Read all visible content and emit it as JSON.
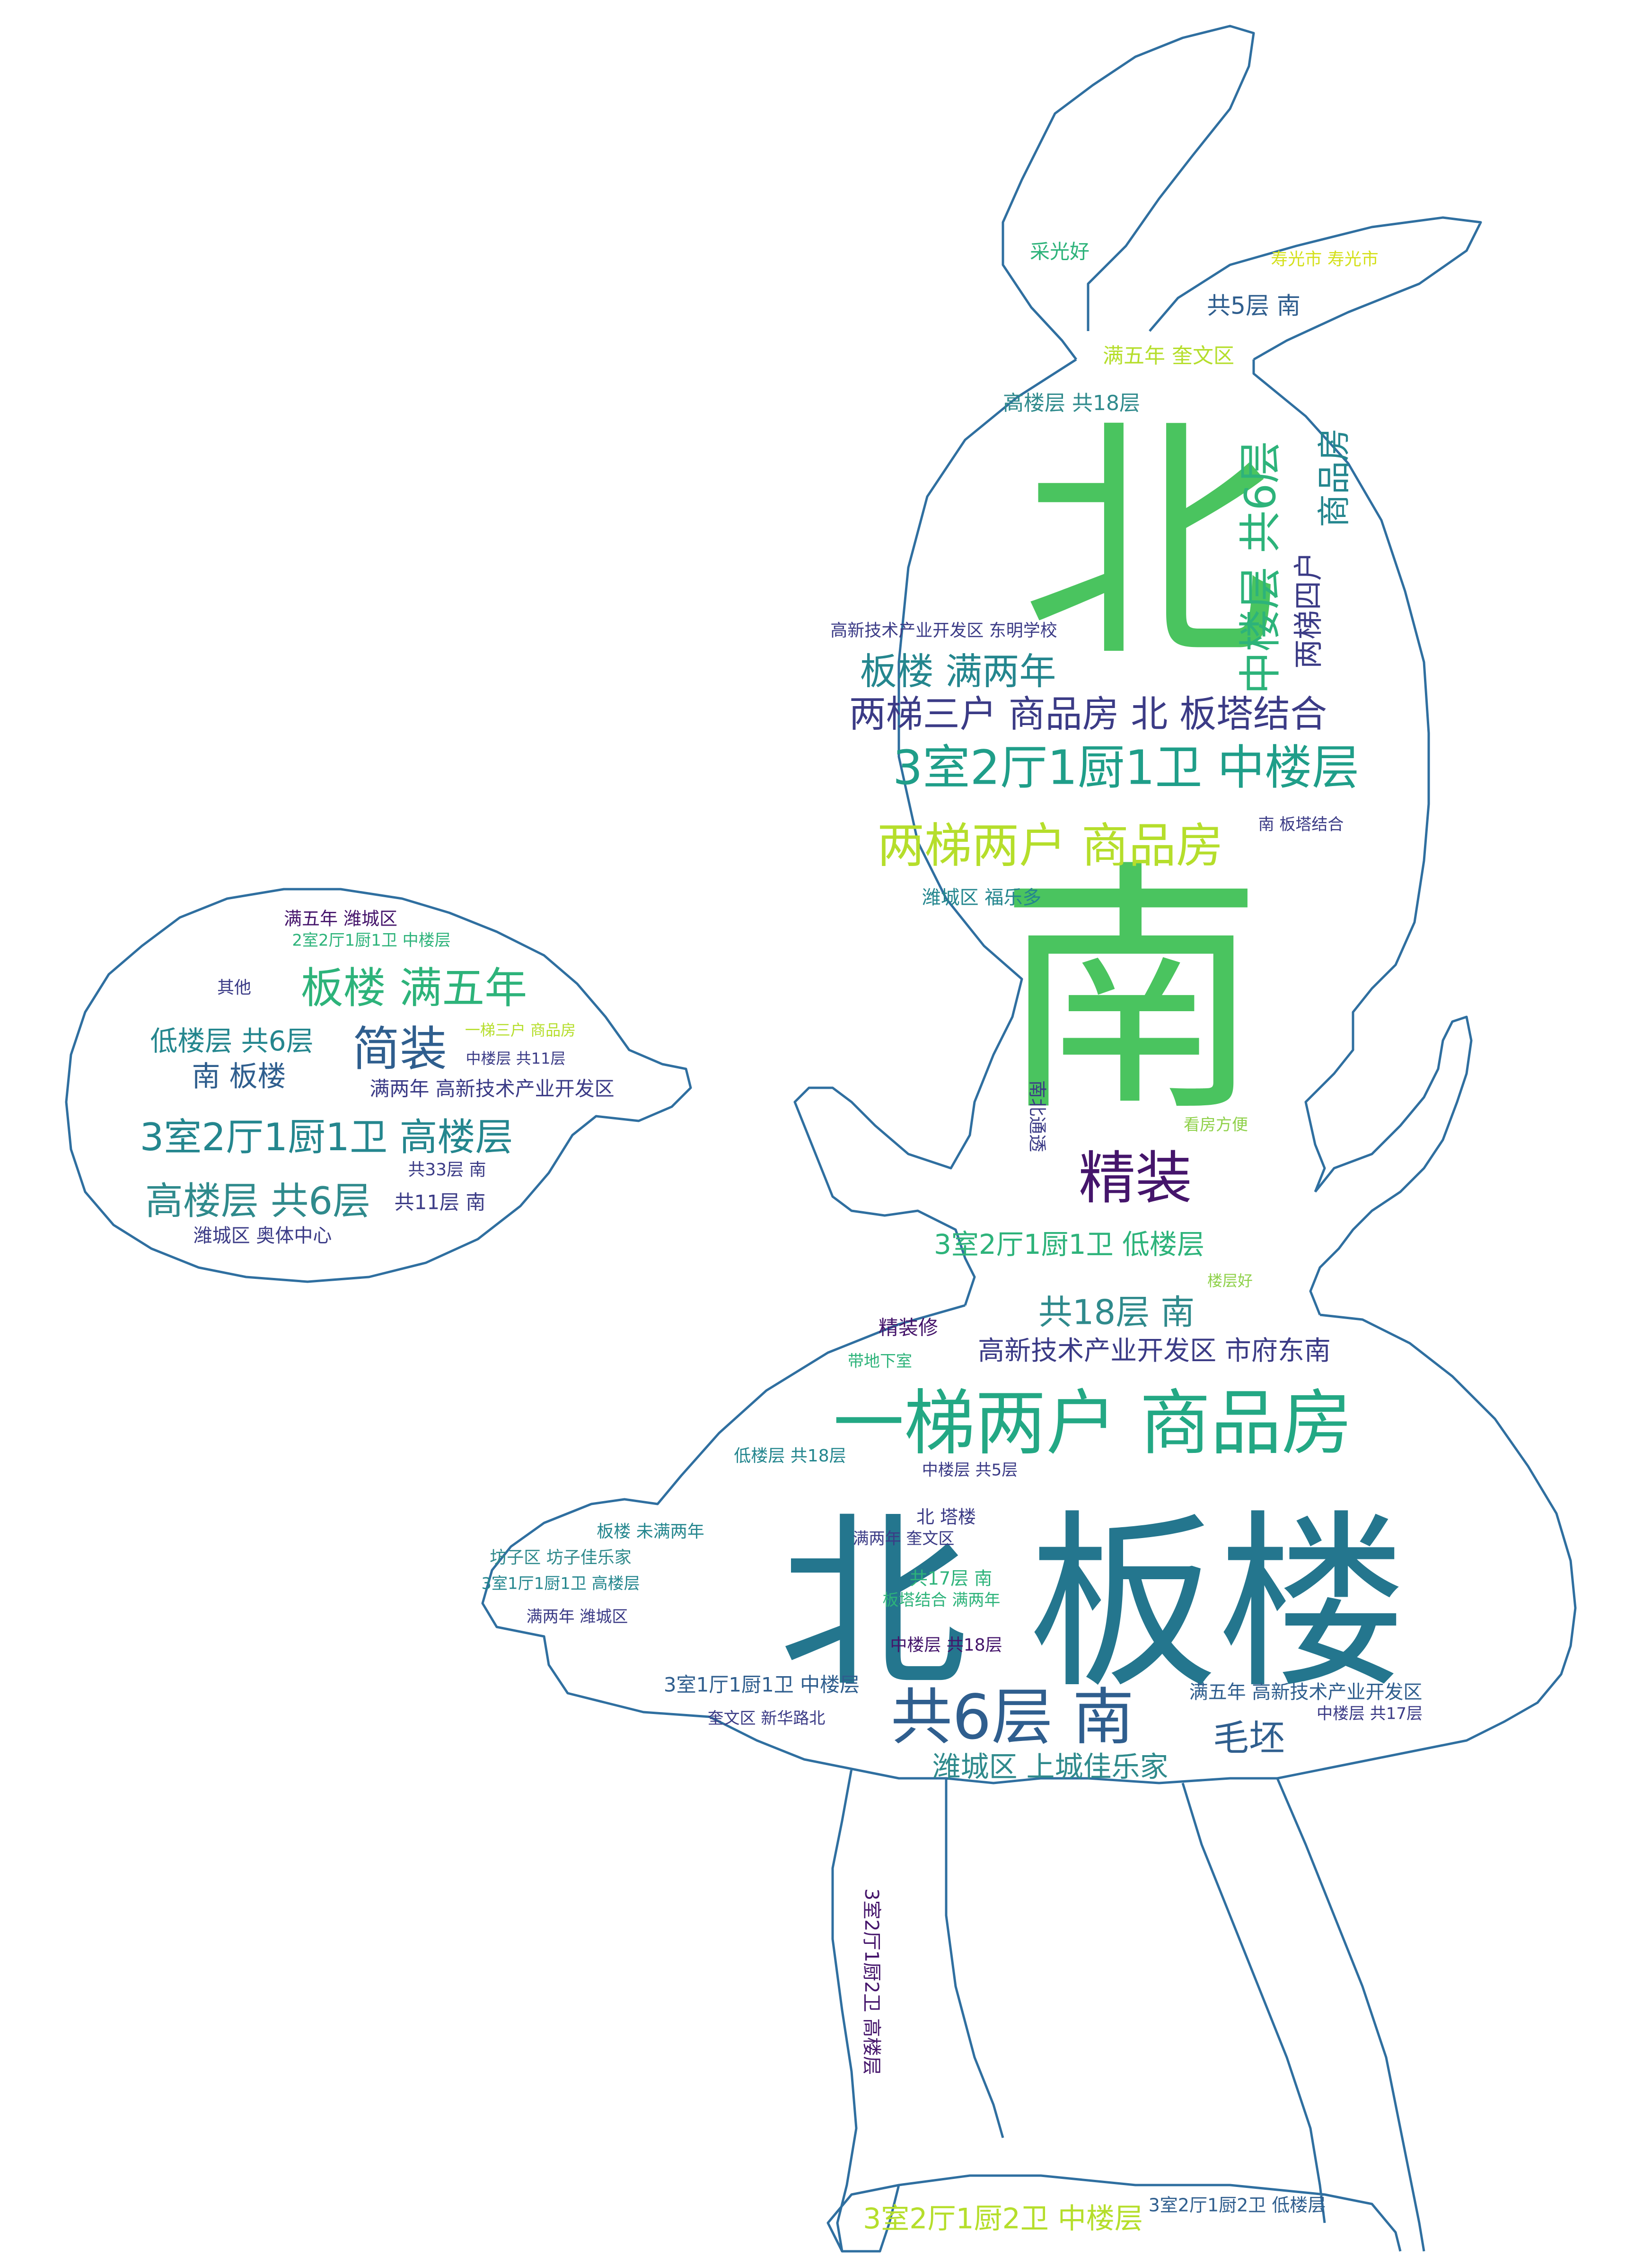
{
  "image": {
    "outline_color": "#2f6fa0",
    "background": "#ffffff",
    "palette": {
      "purple": "#45156b",
      "indigo": "#3b3b86",
      "blue": "#2f5e8e",
      "teal": "#24868e",
      "green": "#2db37a",
      "lime": "#4fc35d",
      "lightgreen": "#8fd14a",
      "yellow": "#d4e01b"
    }
  },
  "words": [
    {
      "text": "北",
      "color": "#4ac45f",
      "rot": 0
    },
    {
      "text": "南",
      "color": "#4ac45f",
      "rot": 0
    },
    {
      "text": "北 板楼",
      "color": "#24768e",
      "rot": 0
    },
    {
      "text": "一梯两户 商品房",
      "color": "#23a884",
      "rot": 0
    },
    {
      "text": "共6层 南",
      "color": "#2f5e8e",
      "rot": 0
    },
    {
      "text": "3室2厅1厨1卫 中楼层",
      "color": "#1f9e89",
      "rot": 0
    },
    {
      "text": "两梯两户 商品房",
      "color": "#b5de2b",
      "rot": 0
    },
    {
      "text": "两梯三户 商品房 北 板塔结合",
      "color": "#3b3b86",
      "rot": 0
    },
    {
      "text": "板楼 满两年",
      "color": "#24868e",
      "rot": 0
    },
    {
      "text": "精装",
      "color": "#45156b",
      "rot": 0
    },
    {
      "text": "中楼层 共6层",
      "color": "#2db37a",
      "rot": 270
    },
    {
      "text": "商品房",
      "color": "#24868e",
      "rot": 270
    },
    {
      "text": "两梯四户",
      "color": "#3b3b86",
      "rot": 270
    },
    {
      "text": "共18层 南",
      "color": "#2f8a8c",
      "rot": 0
    },
    {
      "text": "高新技术产业开发区 市府东南",
      "color": "#3b3b86",
      "rot": 0
    },
    {
      "text": "3室2厅1厨1卫 低楼层",
      "color": "#2db37a",
      "rot": 0
    },
    {
      "text": "潍城区 上城佳乐家",
      "color": "#2f8a8c",
      "rot": 0
    },
    {
      "text": "毛坯",
      "color": "#2f5e8e",
      "rot": 0
    },
    {
      "text": "板楼 满五年",
      "color": "#2db37a",
      "rot": 0
    },
    {
      "text": "简装",
      "color": "#2f5e8e",
      "rot": 0
    },
    {
      "text": "3室2厅1厨1卫 高楼层",
      "color": "#24868e",
      "rot": 0
    },
    {
      "text": "高楼层 共6层",
      "color": "#2f8a8c",
      "rot": 0
    },
    {
      "text": "低楼层 共6层",
      "color": "#24868e",
      "rot": 0
    },
    {
      "text": "南 板楼",
      "color": "#2f5e8e",
      "rot": 0
    },
    {
      "text": "满两年 高新技术产业开发区",
      "color": "#3b3b86",
      "rot": 0
    },
    {
      "text": "共5层 南",
      "color": "#2f5e8e",
      "rot": 0
    },
    {
      "text": "满五年 奎文区",
      "color": "#b5de2b",
      "rot": 0
    },
    {
      "text": "高楼层 共18层",
      "color": "#2f8a8c",
      "rot": 0
    },
    {
      "text": "采光好",
      "color": "#2db37a",
      "rot": 0
    },
    {
      "text": "寿光市 寿光市",
      "color": "#d4e01b",
      "rot": 0
    },
    {
      "text": "高新技术产业开发区 东明学校",
      "color": "#3b3b86",
      "rot": 0
    },
    {
      "text": "潍城区 福乐多",
      "color": "#24868e",
      "rot": 0
    },
    {
      "text": "南 板塔结合",
      "color": "#3b3b86",
      "rot": 0
    },
    {
      "text": "精装修",
      "color": "#45156b",
      "rot": 0
    },
    {
      "text": "带地下室",
      "color": "#2db37a",
      "rot": 0
    },
    {
      "text": "低楼层 共18层",
      "color": "#24868e",
      "rot": 0
    },
    {
      "text": "中楼层 共5层",
      "color": "#3b3b86",
      "rot": 0
    },
    {
      "text": "北 塔楼",
      "color": "#3b3b86",
      "rot": 0
    },
    {
      "text": "满两年 奎文区",
      "color": "#3b3b86",
      "rot": 0
    },
    {
      "text": "共17层 南",
      "color": "#2db37a",
      "rot": 0
    },
    {
      "text": "板塔结合 满两年",
      "color": "#2db37a",
      "rot": 0
    },
    {
      "text": "板楼 未满两年",
      "color": "#24868e",
      "rot": 0
    },
    {
      "text": "坊子区 坊子佳乐家",
      "color": "#2f8a8c",
      "rot": 0
    },
    {
      "text": "3室1厅1厨1卫 高楼层",
      "color": "#24868e",
      "rot": 0
    },
    {
      "text": "满两年 潍城区",
      "color": "#3b3b86",
      "rot": 0
    },
    {
      "text": "中楼层 共18层",
      "color": "#45156b",
      "rot": 0
    },
    {
      "text": "3室1厅1厨1卫 中楼层",
      "color": "#2f5e8e",
      "rot": 0
    },
    {
      "text": "奎文区 新华路北",
      "color": "#3b3b86",
      "rot": 0
    },
    {
      "text": "满五年 高新技术产业开发区",
      "color": "#2f5e8e",
      "rot": 0
    },
    {
      "text": "中楼层 共17层",
      "color": "#3b3b86",
      "rot": 0
    },
    {
      "text": "3室2厅1厨2卫 中楼层",
      "color": "#b5de2b",
      "rot": 0
    },
    {
      "text": "3室2厅1厨2卫 低楼层",
      "color": "#2f5e8e",
      "rot": 0
    },
    {
      "text": "3室2厅1厨2卫 高楼层",
      "color": "#45156b",
      "rot": 90
    },
    {
      "text": "满五年 潍城区",
      "color": "#45156b",
      "rot": 0
    },
    {
      "text": "其他",
      "color": "#3b3b86",
      "rot": 0
    },
    {
      "text": "共33层 南",
      "color": "#3b3b86",
      "rot": 0
    },
    {
      "text": "共11层 南",
      "color": "#3b3b86",
      "rot": 0
    },
    {
      "text": "潍城区 奥体中心",
      "color": "#3b3b86",
      "rot": 0
    },
    {
      "text": "中楼层 共11层",
      "color": "#3b3b86",
      "rot": 0
    },
    {
      "text": "2室2厅1厨1卫 中楼层",
      "color": "#2db37a",
      "rot": 0
    },
    {
      "text": "一梯三户 商品房",
      "color": "#b5de2b",
      "rot": 0
    },
    {
      "text": "看房方便",
      "color": "#8fd14a",
      "rot": 0
    },
    {
      "text": "南北通透",
      "color": "#3b3b86",
      "rot": 90
    },
    {
      "text": "楼层好",
      "color": "#8fd14a",
      "rot": 0
    }
  ]
}
